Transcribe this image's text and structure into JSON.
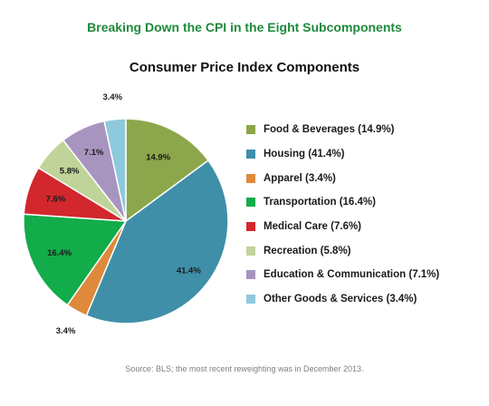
{
  "header": {
    "title": "Breaking Down the CPI in the Eight Subcomponents"
  },
  "chart_data": {
    "type": "pie",
    "title": "Consumer Price Index Components",
    "slices": [
      {
        "name": "Food & Beverages",
        "value": 14.9,
        "label": "14.9%",
        "legend": "Food & Beverages (14.9%)",
        "color": "#8ca64b"
      },
      {
        "name": "Housing",
        "value": 41.4,
        "label": "41.4%",
        "legend": "Housing (41.4%)",
        "color": "#3f8fa8"
      },
      {
        "name": "Apparel",
        "value": 3.4,
        "label": "3.4%",
        "legend": "Apparel (3.4%)",
        "color": "#df8a3a"
      },
      {
        "name": "Transportation",
        "value": 16.4,
        "label": "16.4%",
        "legend": "Transportation (16.4%)",
        "color": "#12ac4a"
      },
      {
        "name": "Medical Care",
        "value": 7.6,
        "label": "7.6%",
        "legend": "Medical Care (7.6%)",
        "color": "#d1272d"
      },
      {
        "name": "Recreation",
        "value": 5.8,
        "label": "5.8%",
        "legend": "Recreation (5.8%)",
        "color": "#c0d49a"
      },
      {
        "name": "Education & Communication",
        "value": 7.1,
        "label": "7.1%",
        "legend": "Education & Communication (7.1%)",
        "color": "#a795c0"
      },
      {
        "name": "Other Goods & Services",
        "value": 3.4,
        "label": "3.4%",
        "legend": "Other Goods & Services (3.4%)",
        "color": "#8fc9dc"
      }
    ],
    "legend_position": "right"
  },
  "footer": {
    "source": "Source: BLS; the most recent reweighting was in December 2013."
  }
}
